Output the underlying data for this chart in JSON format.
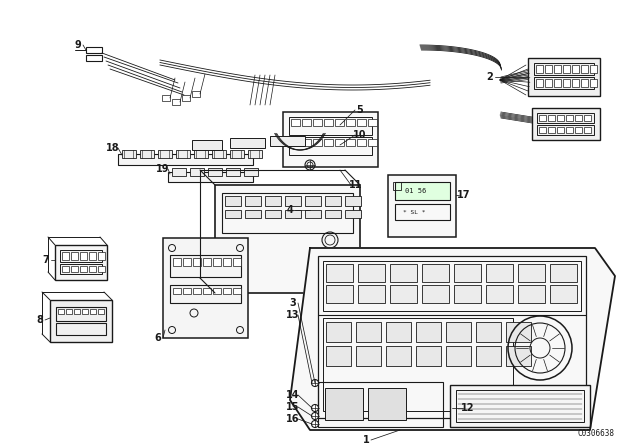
{
  "background_color": "#ffffff",
  "line_color": "#1a1a1a",
  "diagram_code": "C0306638",
  "fig_width": 6.4,
  "fig_height": 4.48,
  "dpi": 100
}
